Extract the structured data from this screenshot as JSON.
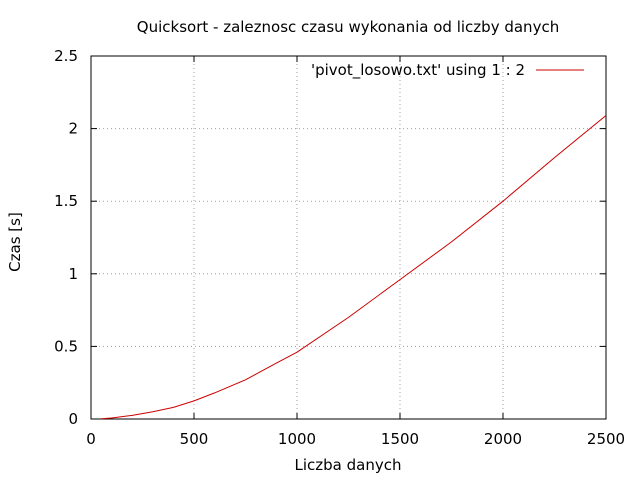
{
  "chart_data": {
    "type": "line",
    "title": "Quicksort - zaleznosc czasu wykonania od liczby danych",
    "xlabel": "Liczba danych",
    "ylabel": "Czas [s]",
    "xlim": [
      0,
      2500
    ],
    "ylim": [
      0,
      2.5
    ],
    "xticks": [
      0,
      500,
      1000,
      1500,
      2000,
      2500
    ],
    "xtick_labels": [
      "0",
      "500",
      "1000",
      "1500",
      "2000",
      "2500"
    ],
    "yticks": [
      0,
      0.5,
      1,
      1.5,
      2,
      2.5
    ],
    "ytick_labels": [
      "0",
      "0.5",
      "1",
      "1.5",
      "2",
      "2.5"
    ],
    "grid": true,
    "legend_position": "top-right",
    "series": [
      {
        "name": "'pivot_losowo.txt' using 1 : 2",
        "color": "#cc0000",
        "x": [
          50,
          100,
          200,
          300,
          400,
          500,
          600,
          750,
          900,
          1000,
          1250,
          1500,
          1750,
          2000,
          2250,
          2500
        ],
        "y": [
          0.002,
          0.007,
          0.025,
          0.05,
          0.08,
          0.125,
          0.18,
          0.27,
          0.385,
          0.46,
          0.7,
          0.96,
          1.22,
          1.5,
          1.8,
          2.09
        ]
      }
    ]
  }
}
